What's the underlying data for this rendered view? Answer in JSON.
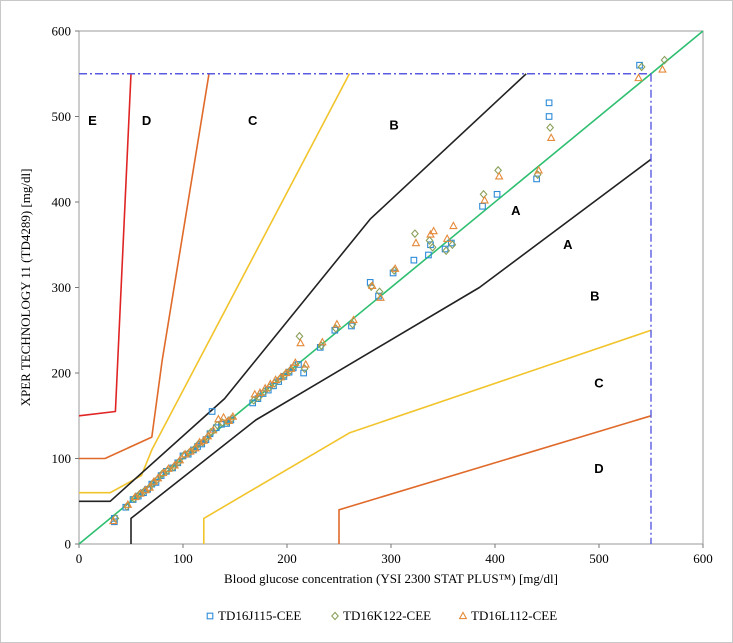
{
  "chart_data": {
    "type": "scatter",
    "title": "",
    "xlabel": "Blood glucose concentration (YSI 2300 STAT PLUS™) [mg/dl]",
    "ylabel": "XPER TECHNOLOGY 11 (TD4289) [mg/dl]",
    "xlim": [
      0,
      600
    ],
    "ylim": [
      0,
      600
    ],
    "xticks": [
      "0",
      "100",
      "200",
      "300",
      "400",
      "500",
      "600"
    ],
    "yticks": [
      "0",
      "100",
      "200",
      "300",
      "400",
      "500",
      "600"
    ],
    "grid": false,
    "legend_position": "bottom",
    "series": [
      {
        "name": "TD16J115-CEE",
        "marker": "square",
        "color": "#2e8bd8",
        "points": [
          [
            34,
            30
          ],
          [
            34,
            26
          ],
          [
            45,
            43
          ],
          [
            52,
            52
          ],
          [
            57,
            56
          ],
          [
            62,
            60
          ],
          [
            66,
            64
          ],
          [
            70,
            70
          ],
          [
            74,
            72
          ],
          [
            79,
            80
          ],
          [
            84,
            85
          ],
          [
            90,
            89
          ],
          [
            95,
            95
          ],
          [
            100,
            103
          ],
          [
            105,
            105
          ],
          [
            110,
            110
          ],
          [
            114,
            114
          ],
          [
            118,
            117
          ],
          [
            122,
            122
          ],
          [
            126,
            129
          ],
          [
            128,
            155
          ],
          [
            132,
            136
          ],
          [
            137,
            140
          ],
          [
            142,
            141
          ],
          [
            146,
            145
          ],
          [
            167,
            165
          ],
          [
            172,
            170
          ],
          [
            177,
            176
          ],
          [
            182,
            180
          ],
          [
            187,
            185
          ],
          [
            192,
            190
          ],
          [
            197,
            196
          ],
          [
            202,
            201
          ],
          [
            206,
            206
          ],
          [
            211,
            210
          ],
          [
            216,
            200
          ],
          [
            232,
            230
          ],
          [
            246,
            250
          ],
          [
            262,
            255
          ],
          [
            280,
            306
          ],
          [
            288,
            290
          ],
          [
            302,
            317
          ],
          [
            322,
            332
          ],
          [
            336,
            338
          ],
          [
            338,
            350
          ],
          [
            352,
            345
          ],
          [
            358,
            352
          ],
          [
            388,
            395
          ],
          [
            402,
            409
          ],
          [
            440,
            427
          ],
          [
            452,
            516
          ],
          [
            452,
            500
          ],
          [
            539,
            560
          ]
        ]
      },
      {
        "name": "TD16K122-CEE",
        "marker": "diamond",
        "color": "#8aa05a",
        "points": [
          [
            35,
            30
          ],
          [
            46,
            44
          ],
          [
            53,
            53
          ],
          [
            58,
            58
          ],
          [
            63,
            62
          ],
          [
            67,
            65
          ],
          [
            71,
            71
          ],
          [
            75,
            75
          ],
          [
            80,
            82
          ],
          [
            85,
            86
          ],
          [
            91,
            90
          ],
          [
            96,
            96
          ],
          [
            101,
            104
          ],
          [
            106,
            107
          ],
          [
            111,
            111
          ],
          [
            115,
            117
          ],
          [
            119,
            119
          ],
          [
            123,
            124
          ],
          [
            127,
            131
          ],
          [
            133,
            139
          ],
          [
            138,
            142
          ],
          [
            143,
            143
          ],
          [
            147,
            147
          ],
          [
            168,
            168
          ],
          [
            173,
            172
          ],
          [
            178,
            178
          ],
          [
            183,
            183
          ],
          [
            188,
            188
          ],
          [
            193,
            193
          ],
          [
            198,
            198
          ],
          [
            203,
            203
          ],
          [
            207,
            208
          ],
          [
            212,
            243
          ],
          [
            217,
            205
          ],
          [
            233,
            232
          ],
          [
            247,
            252
          ],
          [
            263,
            257
          ],
          [
            281,
            301
          ],
          [
            289,
            295
          ],
          [
            303,
            320
          ],
          [
            323,
            363
          ],
          [
            337,
            355
          ],
          [
            340,
            347
          ],
          [
            353,
            343
          ],
          [
            359,
            350
          ],
          [
            389,
            409
          ],
          [
            403,
            437
          ],
          [
            441,
            432
          ],
          [
            453,
            487
          ],
          [
            541,
            558
          ],
          [
            563,
            566
          ]
        ]
      },
      {
        "name": "TD16L112-CEE",
        "marker": "triangle",
        "color": "#e58a3a",
        "points": [
          [
            33,
            27
          ],
          [
            47,
            46
          ],
          [
            54,
            55
          ],
          [
            59,
            59
          ],
          [
            64,
            63
          ],
          [
            68,
            66
          ],
          [
            72,
            73
          ],
          [
            76,
            77
          ],
          [
            81,
            83
          ],
          [
            86,
            88
          ],
          [
            92,
            92
          ],
          [
            97,
            98
          ],
          [
            102,
            105
          ],
          [
            107,
            108
          ],
          [
            112,
            112
          ],
          [
            116,
            119
          ],
          [
            120,
            121
          ],
          [
            124,
            126
          ],
          [
            129,
            133
          ],
          [
            134,
            146
          ],
          [
            139,
            148
          ],
          [
            144,
            144
          ],
          [
            148,
            149
          ],
          [
            169,
            175
          ],
          [
            174,
            177
          ],
          [
            179,
            182
          ],
          [
            184,
            187
          ],
          [
            189,
            192
          ],
          [
            194,
            195
          ],
          [
            199,
            200
          ],
          [
            204,
            205
          ],
          [
            208,
            212
          ],
          [
            213,
            235
          ],
          [
            218,
            210
          ],
          [
            234,
            236
          ],
          [
            248,
            257
          ],
          [
            264,
            262
          ],
          [
            282,
            302
          ],
          [
            290,
            288
          ],
          [
            304,
            322
          ],
          [
            324,
            352
          ],
          [
            338,
            362
          ],
          [
            341,
            366
          ],
          [
            354,
            357
          ],
          [
            360,
            372
          ],
          [
            390,
            402
          ],
          [
            404,
            430
          ],
          [
            442,
            437
          ],
          [
            454,
            475
          ],
          [
            538,
            545
          ],
          [
            561,
            555
          ]
        ]
      }
    ],
    "zone_labels": [
      "A",
      "A",
      "B",
      "B",
      "C",
      "C",
      "D",
      "D",
      "E"
    ]
  }
}
